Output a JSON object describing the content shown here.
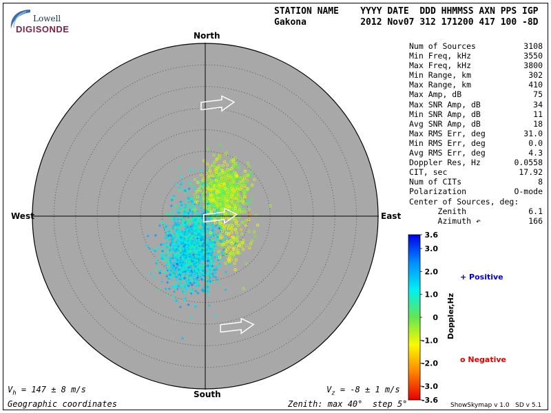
{
  "logo": {
    "top": "Lowell",
    "bottom": "DIGISONDE"
  },
  "header": {
    "line1": "STATION NAME    YYYY DATE  DDD HHMMSS AXN PPS IGP",
    "line2": "Gakona          2012 Nov07 312 171200 417 100 -8D"
  },
  "stats": [
    {
      "label": "Num of Sources",
      "value": "3108"
    },
    {
      "label": "Min Freq, kHz",
      "value": "3550"
    },
    {
      "label": "Max Freq, kHz",
      "value": "3800"
    },
    {
      "label": "Min Range, km",
      "value": "302"
    },
    {
      "label": "Max Range, km",
      "value": "410"
    },
    {
      "label": "Max Amp, dB",
      "value": "75"
    },
    {
      "label": "Max SNR Amp, dB",
      "value": "34"
    },
    {
      "label": "Min SNR Amp, dB",
      "value": "11"
    },
    {
      "label": "Avg SNR Amp, dB",
      "value": "18"
    },
    {
      "label": "Max RMS Err, deg",
      "value": "31.0"
    },
    {
      "label": "Min RMS Err, deg",
      "value": "0.0"
    },
    {
      "label": "Avg RMS Err, deg",
      "value": "4.3"
    },
    {
      "label": "Doppler Res, Hz",
      "value": "0.0558"
    },
    {
      "label": "CIT, sec",
      "value": "17.92"
    },
    {
      "label": "Num of CITs",
      "value": "8"
    },
    {
      "label": "Polarization",
      "value": "O-mode"
    },
    {
      "label": "Center of Sources, deg:",
      "value": ""
    },
    {
      "label": "      Zenith",
      "value": "6.1"
    },
    {
      "label": "      Azimuth ↶",
      "value": "166"
    }
  ],
  "directions": {
    "north": "North",
    "south": "South",
    "east": "East",
    "west": "West"
  },
  "footer": {
    "vh_sym": "V",
    "vh_sub": "h",
    "vh_rest": " = 147 ± 8 m/s",
    "vz_sym": "V",
    "vz_sub": "z",
    "vz_rest": " = -8 ± 1 m/s",
    "coords": "Geographic coordinates",
    "zenith": "Zenith: max 40°  step 5°",
    "version": "ShowSkymap v 1.0   SD v 5.1"
  },
  "legend": {
    "positive": "+ Positive",
    "negative": "o Negative",
    "axis_label": "Doppler,Hz"
  },
  "colors": {
    "plot_bg": "#a8a8a8",
    "positive": "#0000c8",
    "negative": "#e00000",
    "arrow": "#ffffff"
  },
  "chart_data": {
    "type": "scatter",
    "projection": "polar skymap",
    "zenith_max_deg": 40,
    "zenith_step_deg": 5,
    "colorbar": {
      "label": "Doppler,Hz",
      "range": [
        -3.6,
        3.6
      ],
      "tick_labels": [
        "3.6",
        "3.0",
        "2.0",
        "1.0",
        "0",
        "-1.0",
        "-2.0",
        "-3.0",
        "-3.6"
      ],
      "tick_values": [
        3.6,
        3.0,
        2.0,
        1.0,
        0,
        -1.0,
        -2.0,
        -3.0,
        -3.6
      ]
    },
    "clusters": [
      {
        "name": "Positive",
        "marker": "+",
        "doppler_hz": 1.4,
        "center_east_deg": -3.5,
        "center_north_deg": -8.5,
        "spread_deg": 5.5,
        "count": 1400
      },
      {
        "name": "Positive",
        "marker": "+",
        "doppler_hz": 1.1,
        "center_east_deg": -2.0,
        "center_north_deg": -1.0,
        "spread_deg": 6.0,
        "count": 450
      },
      {
        "name": "Negative",
        "marker": "o",
        "doppler_hz": -0.5,
        "center_east_deg": 4.5,
        "center_north_deg": 5.5,
        "spread_deg": 4.5,
        "count": 800
      },
      {
        "name": "Negative",
        "marker": "o",
        "doppler_hz": -0.8,
        "center_east_deg": 6.5,
        "center_north_deg": -6.0,
        "spread_deg": 4.0,
        "count": 120
      }
    ],
    "velocity_arrows_deg": [
      {
        "east": 0.0,
        "north": 26.0
      },
      {
        "east": 0.6,
        "north": 0.0
      },
      {
        "east": 4.5,
        "north": -25.5
      }
    ]
  }
}
